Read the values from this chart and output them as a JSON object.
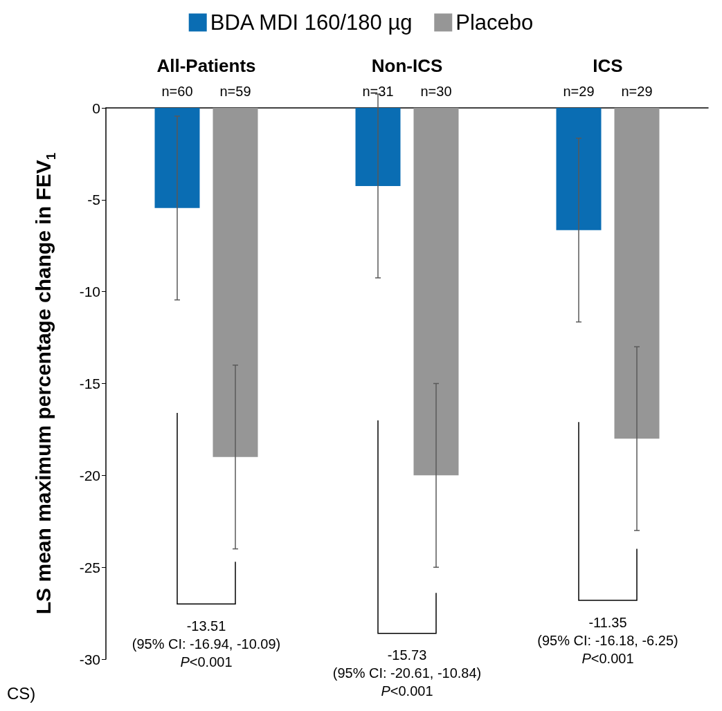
{
  "chart_data": {
    "type": "bar",
    "ylabel": "LS mean maximum percentage change in FEV$_{1}$",
    "categories": [
      "All-Patients",
      "Non-ICS",
      "ICS"
    ],
    "series": [
      {
        "name": "BDA MDI 160/180 µg",
        "color": "#0a6db3",
        "values": [
          -5.45,
          -4.25,
          -6.65
        ],
        "errors": [
          5,
          5,
          5
        ]
      },
      {
        "name": "Placebo",
        "color": "#969696",
        "values": [
          -19,
          -20,
          -18
        ],
        "errors": [
          5,
          5,
          5
        ]
      }
    ],
    "ylim": [
      -30,
      0
    ],
    "yticks": [
      0,
      -5,
      -10,
      -15,
      -20,
      -25,
      -30
    ],
    "grid": false,
    "legend": "top",
    "annotations": [
      "n=60",
      "n=59",
      "n=31",
      "n=30",
      "n=29",
      "n=29",
      "-13.51\n(95% CI: -16.94, -10.09)\nP<0.001",
      "-15.73\n(95% CI: -20.61, -10.84)\nP<0.001",
      "-11.35\n(95% CI: -16.18, -6.25)\nP<0.001",
      "CS)"
    ]
  }
}
